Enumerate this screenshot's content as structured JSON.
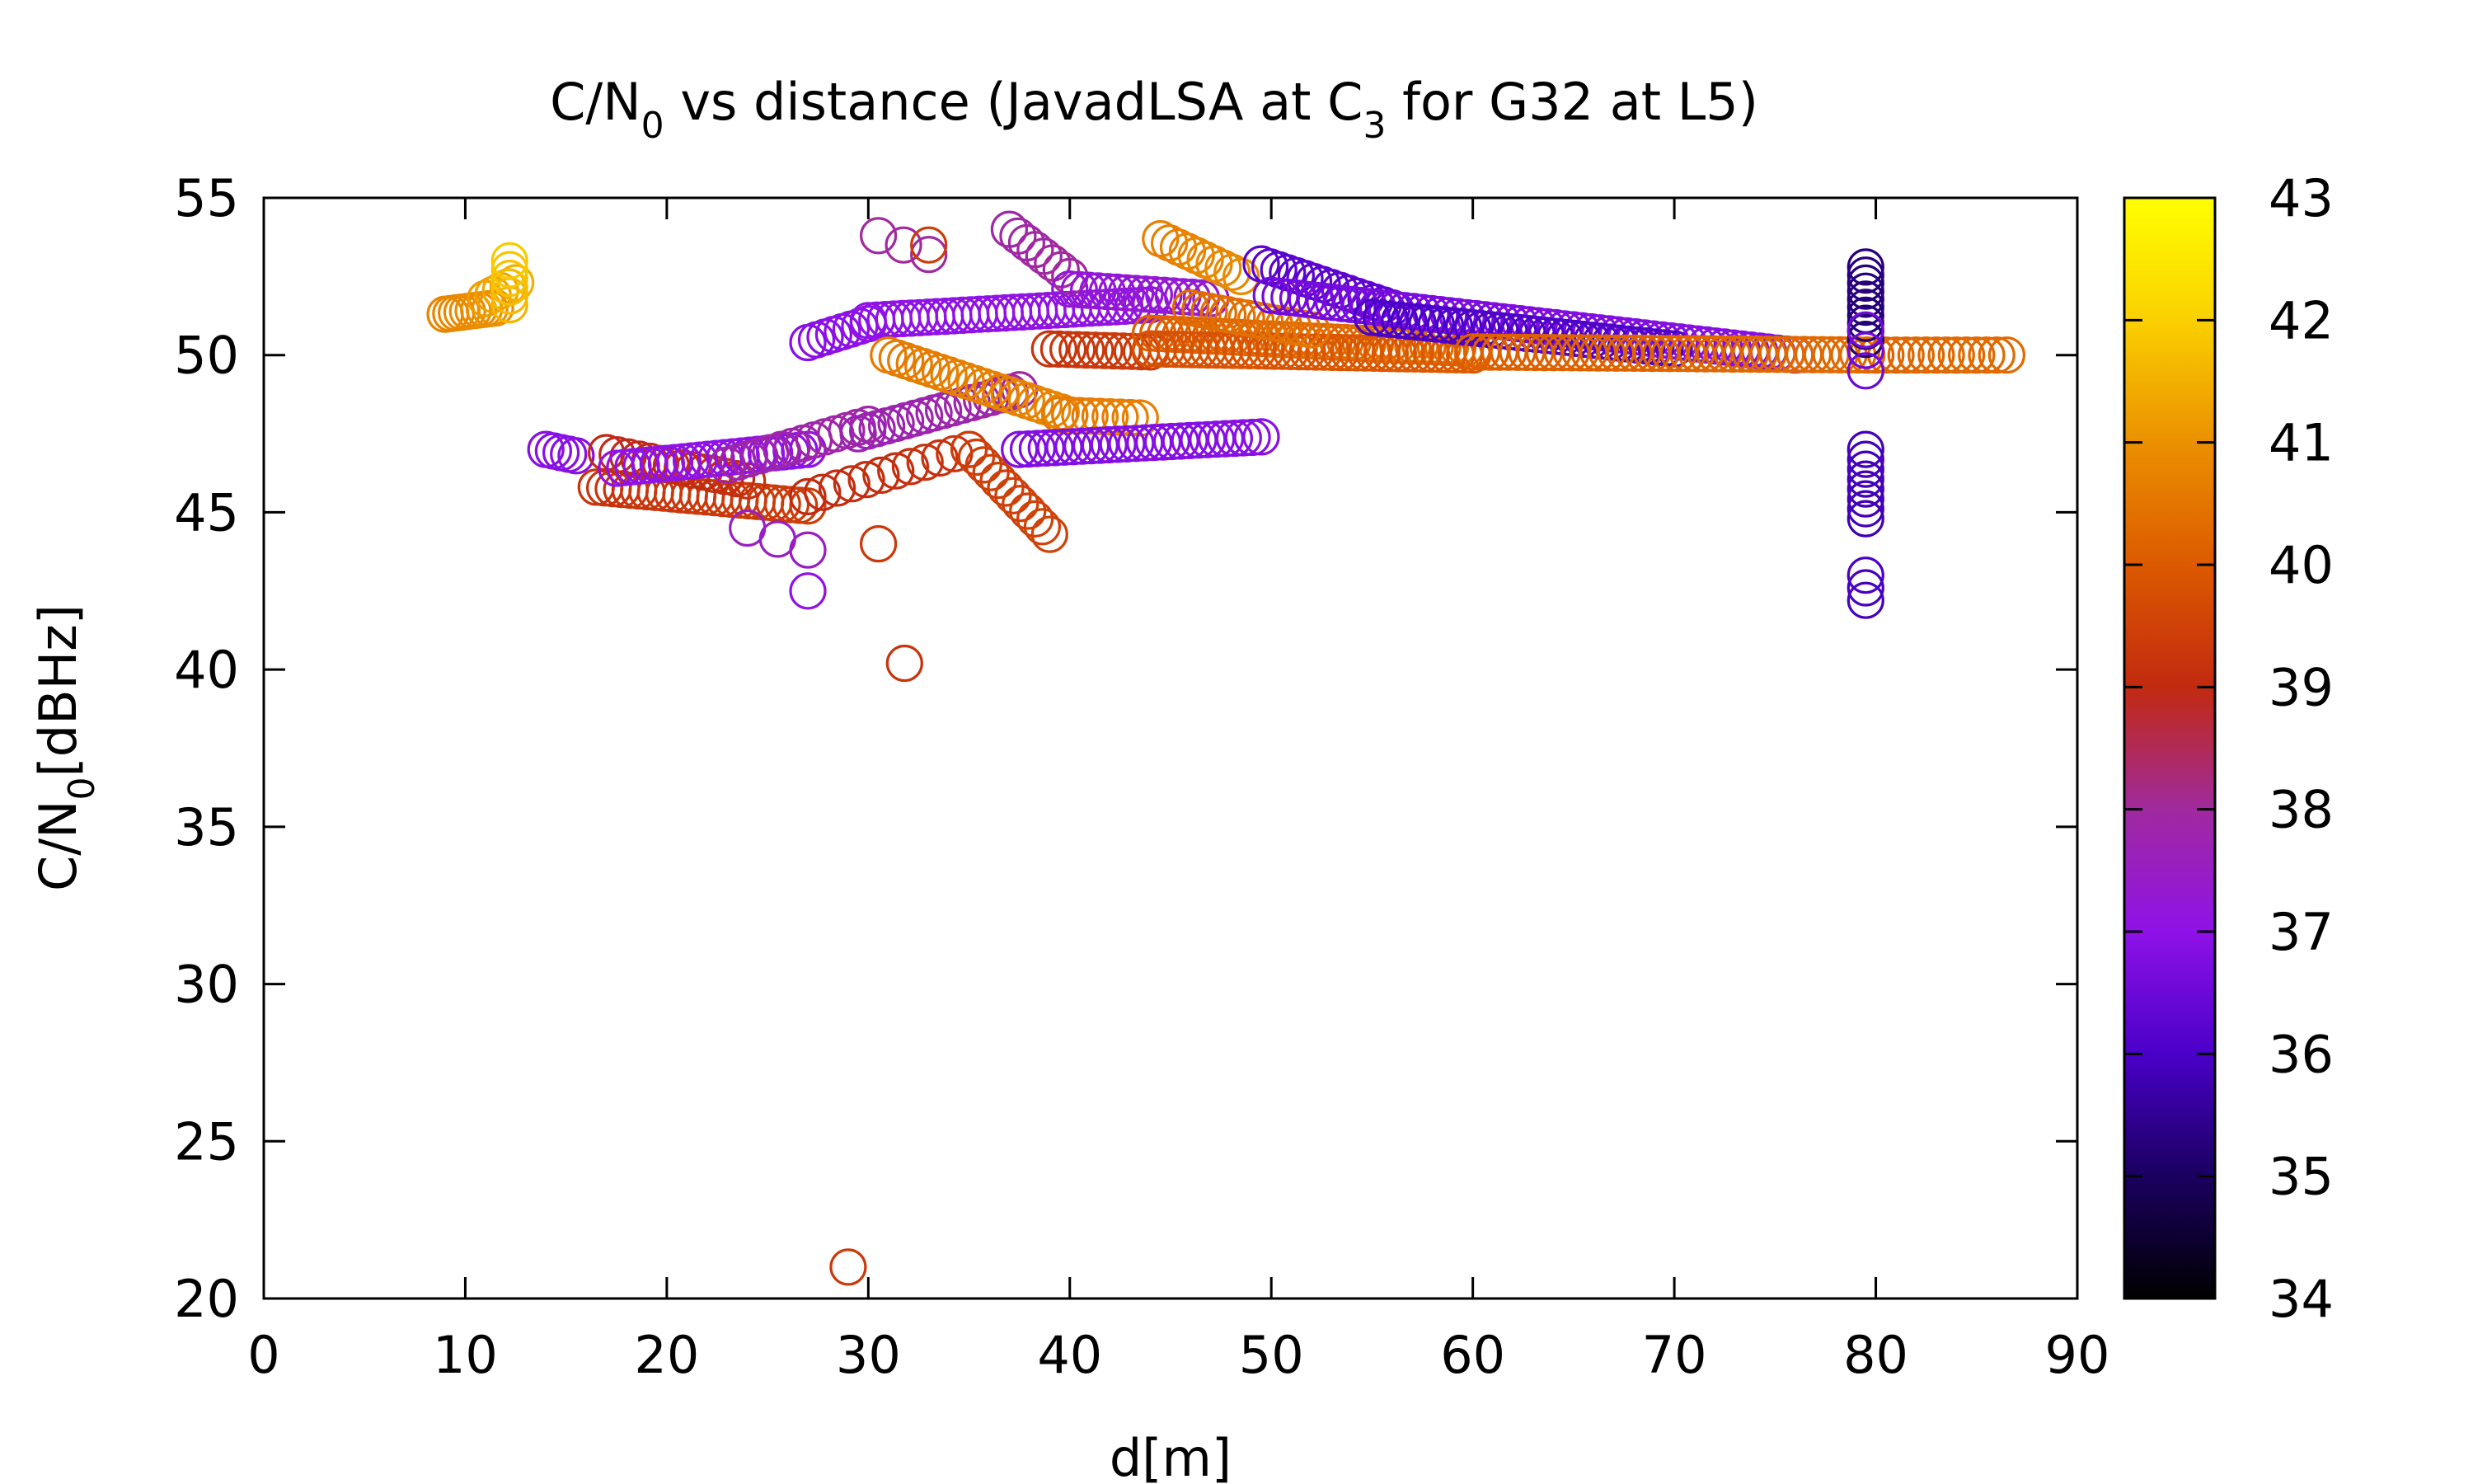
{
  "chart_data": {
    "type": "scatter",
    "title": {
      "parts": [
        "C/N",
        "0",
        " vs distance (JavadLSA at C",
        "3",
        " for G32 at L5)"
      ]
    },
    "xlabel": "d[m]",
    "ylabel": {
      "parts": [
        "C/N",
        "0",
        "[dBHz]"
      ]
    },
    "xlim": [
      0,
      90
    ],
    "ylim": [
      20,
      55
    ],
    "x_ticks": [
      0,
      10,
      20,
      30,
      40,
      50,
      60,
      70,
      80,
      90
    ],
    "y_ticks": [
      20,
      25,
      30,
      35,
      40,
      45,
      50,
      55
    ],
    "colorbar": {
      "range": [
        34,
        43
      ],
      "ticks": [
        34,
        35,
        36,
        37,
        38,
        39,
        40,
        41,
        42,
        43
      ],
      "palette": [
        "#000000",
        "#1a0060",
        "#4a00c8",
        "#8f12e8",
        "#a02a9e",
        "#c22a10",
        "#dc5a00",
        "#eb9000",
        "#fad000",
        "#ffff00"
      ]
    },
    "marker": "open-circle",
    "grid": false,
    "segments": [
      {
        "x0": 9,
        "x1": 11.5,
        "y0": 51.3,
        "y1": 51.5,
        "c0": 40.8,
        "c1": 41.0,
        "n": 10
      },
      {
        "x0": 11,
        "x1": 12.5,
        "y0": 51.8,
        "y1": 52.3,
        "c0": 41.2,
        "c1": 41.5,
        "n": 5
      },
      {
        "x0": 12.2,
        "x1": 12.2,
        "y0": 51.6,
        "y1": 53.0,
        "c0": 41.6,
        "c1": 41.9,
        "n": 6
      },
      {
        "x0": 14,
        "x1": 15.5,
        "y0": 47.0,
        "y1": 46.8,
        "c0": 36.9,
        "c1": 36.9,
        "n": 5
      },
      {
        "x0": 16.5,
        "x1": 27,
        "y0": 45.8,
        "y1": 45.2,
        "c0": 39.2,
        "c1": 39.4,
        "n": 26
      },
      {
        "x0": 17,
        "x1": 24,
        "y0": 46.9,
        "y1": 46.0,
        "c0": 38.9,
        "c1": 39.1,
        "n": 14
      },
      {
        "x0": 17.5,
        "x1": 27,
        "y0": 46.4,
        "y1": 47.0,
        "c0": 37.0,
        "c1": 37.0,
        "n": 24
      },
      {
        "x0": 23,
        "x1": 30,
        "y0": 46.5,
        "y1": 47.8,
        "c0": 37.8,
        "c1": 37.9,
        "n": 14
      },
      {
        "x0": 24,
        "x1": 27,
        "y0": 44.5,
        "y1": 43.8,
        "c0": 37.5,
        "c1": 37.5,
        "n": 3
      },
      {
        "x0": 27,
        "x1": 27,
        "y0": 42.5,
        "y1": 42.5,
        "c0": 37.0,
        "c1": 37.0,
        "n": 1
      },
      {
        "x0": 27,
        "x1": 35,
        "y0": 45.5,
        "y1": 47.0,
        "c0": 39.0,
        "c1": 39.2,
        "n": 12
      },
      {
        "x0": 27,
        "x1": 30,
        "y0": 50.4,
        "y1": 51.0,
        "c0": 36.9,
        "c1": 37.0,
        "n": 8
      },
      {
        "x0": 30,
        "x1": 44,
        "y0": 51.1,
        "y1": 51.6,
        "c0": 37.0,
        "c1": 37.1,
        "n": 34
      },
      {
        "x0": 29.5,
        "x1": 37.5,
        "y0": 47.5,
        "y1": 48.9,
        "c0": 37.7,
        "c1": 37.9,
        "n": 18
      },
      {
        "x0": 30.5,
        "x1": 33,
        "y0": 53.8,
        "y1": 53.2,
        "c0": 38.0,
        "c1": 38.0,
        "n": 3
      },
      {
        "x0": 33,
        "x1": 33,
        "y0": 53.5,
        "y1": 53.5,
        "c0": 39.4,
        "c1": 39.4,
        "n": 1
      },
      {
        "x0": 30.5,
        "x1": 30.5,
        "y0": 44.0,
        "y1": 44.0,
        "c0": 39.3,
        "c1": 39.3,
        "n": 1
      },
      {
        "x0": 31.8,
        "x1": 31.8,
        "y0": 40.2,
        "y1": 40.2,
        "c0": 39.2,
        "c1": 39.2,
        "n": 1
      },
      {
        "x0": 29,
        "x1": 29,
        "y0": 21.0,
        "y1": 21.0,
        "c0": 39.3,
        "c1": 39.3,
        "n": 1
      },
      {
        "x0": 31,
        "x1": 40,
        "y0": 50.0,
        "y1": 48.1,
        "c0": 40.6,
        "c1": 40.8,
        "n": 22
      },
      {
        "x0": 39.5,
        "x1": 43.5,
        "y0": 48.1,
        "y1": 48.0,
        "c0": 40.6,
        "c1": 40.7,
        "n": 9
      },
      {
        "x0": 35,
        "x1": 39,
        "y0": 47.0,
        "y1": 44.3,
        "c0": 39.4,
        "c1": 39.5,
        "n": 12
      },
      {
        "x0": 37,
        "x1": 40,
        "y0": 54.0,
        "y1": 52.5,
        "c0": 37.9,
        "c1": 38.0,
        "n": 8
      },
      {
        "x0": 37.5,
        "x1": 49.5,
        "y0": 47.0,
        "y1": 47.4,
        "c0": 36.8,
        "c1": 36.9,
        "n": 28
      },
      {
        "x0": 39,
        "x1": 44,
        "y0": 50.2,
        "y1": 50.1,
        "c0": 39.2,
        "c1": 39.4,
        "n": 12
      },
      {
        "x0": 40,
        "x1": 47,
        "y0": 52.1,
        "y1": 51.8,
        "c0": 37.2,
        "c1": 37.3,
        "n": 16
      },
      {
        "x0": 44.5,
        "x1": 48.5,
        "y0": 53.7,
        "y1": 52.5,
        "c0": 40.7,
        "c1": 40.9,
        "n": 10
      },
      {
        "x0": 44,
        "x1": 60,
        "y0": 50.7,
        "y1": 50.2,
        "c0": 40.1,
        "c1": 40.4,
        "n": 44
      },
      {
        "x0": 44,
        "x1": 60,
        "y0": 50.2,
        "y1": 50.0,
        "c0": 39.8,
        "c1": 40.0,
        "n": 40
      },
      {
        "x0": 46,
        "x1": 52,
        "y0": 51.5,
        "y1": 50.8,
        "c0": 40.3,
        "c1": 40.5,
        "n": 14
      },
      {
        "x0": 49.5,
        "x1": 56,
        "y0": 52.9,
        "y1": 51.5,
        "c0": 36.2,
        "c1": 36.3,
        "n": 16
      },
      {
        "x0": 50,
        "x1": 76,
        "y0": 51.9,
        "y1": 50.0,
        "c0": 36.6,
        "c1": 36.9,
        "n": 60
      },
      {
        "x0": 55,
        "x1": 70,
        "y0": 51.2,
        "y1": 50.2,
        "c0": 36.0,
        "c1": 36.1,
        "n": 34
      },
      {
        "x0": 60,
        "x1": 80,
        "y0": 50.1,
        "y1": 50.0,
        "c0": 40.1,
        "c1": 40.3,
        "n": 46
      },
      {
        "x0": 80,
        "x1": 86.5,
        "y0": 50.0,
        "y1": 50.0,
        "c0": 40.2,
        "c1": 40.3,
        "n": 14
      },
      {
        "x0": 79.5,
        "x1": 79.5,
        "y0": 50.5,
        "y1": 52.8,
        "c0": 35.2,
        "c1": 35.3,
        "n": 10
      },
      {
        "x0": 79.5,
        "x1": 79.5,
        "y0": 49.5,
        "y1": 50.8,
        "c0": 36.5,
        "c1": 36.6,
        "n": 3
      },
      {
        "x0": 79.5,
        "x1": 79.5,
        "y0": 44.8,
        "y1": 47.0,
        "c0": 35.8,
        "c1": 35.9,
        "n": 8
      },
      {
        "x0": 79.5,
        "x1": 79.5,
        "y0": 42.2,
        "y1": 43.0,
        "c0": 35.9,
        "c1": 36.0,
        "n": 3
      }
    ]
  }
}
